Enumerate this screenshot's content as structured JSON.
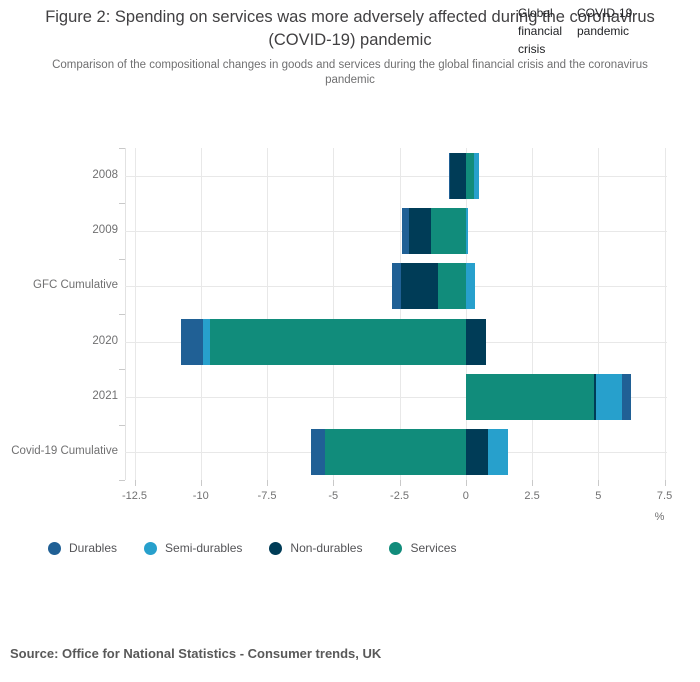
{
  "header": {
    "title": "Figure 2: Spending on services was more adversely affected during the coronavirus (COVID-19) pandemic",
    "subtitle": "Comparison of the compositional changes in goods and services during the global financial crisis and the coronavirus pandemic",
    "tabs": [
      {
        "label": "Global financial crisis"
      },
      {
        "label": "COVID-19 pandemic"
      }
    ]
  },
  "chart_data": {
    "type": "bar",
    "orientation": "horizontal",
    "stacked": true,
    "categories": [
      "2008",
      "2009",
      "GFC Cumulative",
      "2020",
      "2021",
      "Covid-19 Cumulative"
    ],
    "series": [
      {
        "name": "Durables",
        "color": "#206095",
        "values": [
          -0.05,
          -0.25,
          -0.35,
          -0.85,
          0.35,
          -0.55
        ]
      },
      {
        "name": "Semi-durables",
        "color": "#27A0CC",
        "values": [
          0.2,
          0.1,
          0.35,
          -0.25,
          1.0,
          0.75
        ]
      },
      {
        "name": "Non-durables",
        "color": "#003C57",
        "values": [
          -0.6,
          -0.85,
          -1.4,
          0.75,
          0.05,
          0.85
        ]
      },
      {
        "name": "Services",
        "color": "#118C7B",
        "values": [
          0.3,
          -1.3,
          -1.05,
          -9.65,
          4.85,
          -5.3
        ]
      }
    ],
    "stack_order_from_zero": [
      "Services",
      "Non-durables",
      "Semi-durables",
      "Durables"
    ],
    "x_ticks": [
      -12.5,
      -10,
      -7.5,
      -5,
      -2.5,
      0,
      2.5,
      5,
      7.5
    ],
    "xlim": [
      -12.5,
      7.5
    ],
    "xlabel": "%",
    "grid_color": "#e8e8e8",
    "legend_position": "bottom"
  },
  "source": {
    "text": "Source: Office for National Statistics - Consumer trends, UK"
  }
}
